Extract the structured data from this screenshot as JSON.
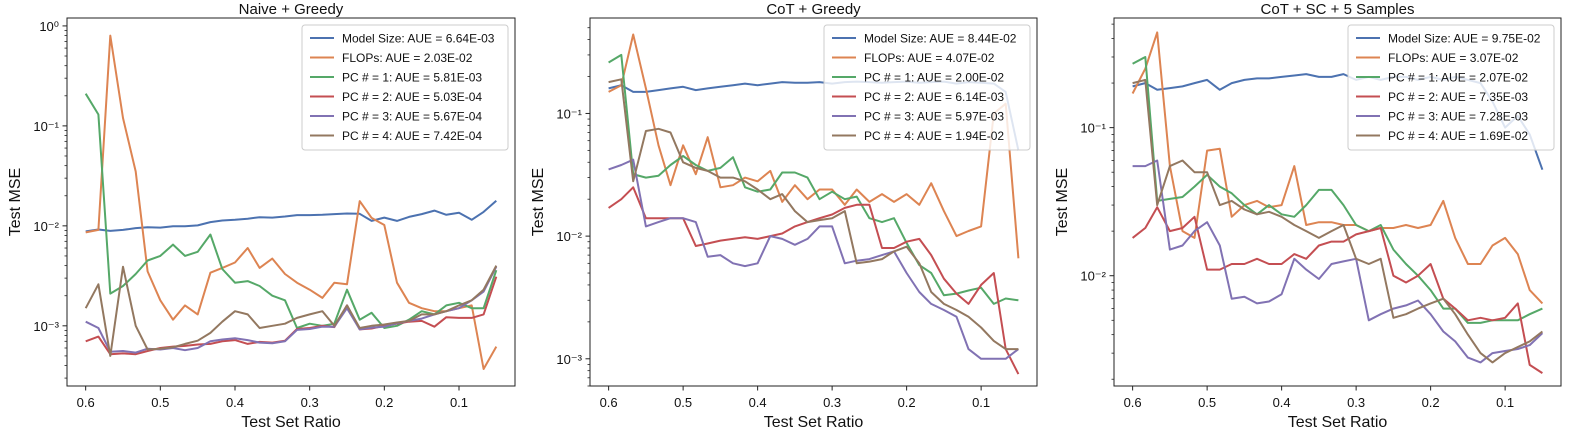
{
  "chart_data": [
    {
      "type": "line",
      "title": "Naive + Greedy",
      "xlabel": "Test Set Ratio",
      "ylabel": "Test MSE",
      "xscale": "linear",
      "yscale": "log",
      "xlim": [
        0.625,
        0.025
      ],
      "ylim": [
        0.00025,
        1.2
      ],
      "xticks": [
        0.6,
        0.5,
        0.4,
        0.3,
        0.2,
        0.1
      ],
      "xtick_labels": [
        "0.6",
        "0.5",
        "0.4",
        "0.3",
        "0.2",
        "0.1"
      ],
      "yticks": [
        0.001,
        0.01,
        0.1,
        1
      ],
      "ytick_labels": [
        "10⁻³",
        "10⁻²",
        "10⁻¹",
        "10⁰"
      ],
      "legend_position": "top-right",
      "x": [
        0.6,
        0.583,
        0.567,
        0.55,
        0.533,
        0.517,
        0.5,
        0.483,
        0.467,
        0.45,
        0.433,
        0.417,
        0.4,
        0.383,
        0.367,
        0.35,
        0.333,
        0.317,
        0.3,
        0.283,
        0.267,
        0.25,
        0.233,
        0.217,
        0.2,
        0.183,
        0.167,
        0.15,
        0.133,
        0.117,
        0.1,
        0.083,
        0.067,
        0.05
      ],
      "series": [
        {
          "name": "Model Size: AUE = 6.64E-03",
          "color": "#4c72b0",
          "values": [
            0.0088,
            0.0092,
            0.0089,
            0.0091,
            0.0095,
            0.0097,
            0.0096,
            0.0099,
            0.0099,
            0.0101,
            0.0109,
            0.0113,
            0.0115,
            0.0118,
            0.0122,
            0.0121,
            0.0124,
            0.0128,
            0.0128,
            0.0129,
            0.0131,
            0.0133,
            0.0132,
            0.0112,
            0.0121,
            0.0112,
            0.0123,
            0.0131,
            0.0142,
            0.0129,
            0.0135,
            0.0115,
            0.0138,
            0.0178
          ]
        },
        {
          "name": "FLOPs: AUE = 2.03E-02",
          "color": "#dd8452",
          "values": [
            0.0086,
            0.0091,
            0.8,
            0.12,
            0.035,
            0.0035,
            0.0018,
            0.00115,
            0.0016,
            0.0013,
            0.0034,
            0.0038,
            0.0043,
            0.006,
            0.0038,
            0.0047,
            0.0033,
            0.0027,
            0.0023,
            0.0019,
            0.0027,
            0.0026,
            0.0177,
            0.012,
            0.0102,
            0.0027,
            0.0017,
            0.0015,
            0.0014,
            0.0014,
            0.0015,
            0.0016,
            0.00037,
            0.00062
          ]
        },
        {
          "name": "PC # = 1: AUE = 5.81E-03",
          "color": "#55a868",
          "values": [
            0.21,
            0.13,
            0.0021,
            0.0025,
            0.0033,
            0.0045,
            0.005,
            0.0065,
            0.005,
            0.0055,
            0.0082,
            0.0037,
            0.0027,
            0.0028,
            0.0025,
            0.002,
            0.0018,
            0.00095,
            0.00105,
            0.001,
            0.00105,
            0.0023,
            0.00115,
            0.00135,
            0.00095,
            0.001,
            0.00115,
            0.0014,
            0.0013,
            0.0016,
            0.0017,
            0.0015,
            0.0015,
            0.0036
          ]
        },
        {
          "name": "PC # = 2: AUE = 5.03E-04",
          "color": "#c44e52",
          "values": [
            0.0007,
            0.00078,
            0.00052,
            0.00053,
            0.00052,
            0.00056,
            0.0006,
            0.00062,
            0.00063,
            0.00065,
            0.00066,
            0.0007,
            0.00072,
            0.00066,
            0.00069,
            0.00068,
            0.00071,
            0.00093,
            0.00095,
            0.001,
            0.00097,
            0.0016,
            0.00092,
            0.00094,
            0.001,
            0.00105,
            0.0011,
            0.00112,
            0.00098,
            0.00122,
            0.0012,
            0.0012,
            0.0013,
            0.0031
          ]
        },
        {
          "name": "PC # = 3: AUE = 5.67E-04",
          "color": "#8172b3",
          "values": [
            0.0011,
            0.00095,
            0.00055,
            0.00056,
            0.00054,
            0.00059,
            0.00058,
            0.0006,
            0.00057,
            0.0006,
            0.0007,
            0.00073,
            0.00075,
            0.00072,
            0.00068,
            0.00067,
            0.0007,
            0.00091,
            0.00093,
            0.00098,
            0.00098,
            0.0015,
            0.00092,
            0.00096,
            0.00098,
            0.00106,
            0.00112,
            0.00118,
            0.0013,
            0.0014,
            0.0015,
            0.0018,
            0.0022,
            0.0039
          ]
        },
        {
          "name": "PC # = 4: AUE = 7.42E-04",
          "color": "#937860",
          "values": [
            0.0015,
            0.0026,
            0.0005,
            0.0039,
            0.001,
            0.00058,
            0.00059,
            0.00061,
            0.00066,
            0.00071,
            0.00085,
            0.0011,
            0.0014,
            0.0013,
            0.00095,
            0.001,
            0.00105,
            0.0012,
            0.0013,
            0.0014,
            0.001,
            0.0016,
            0.00095,
            0.001,
            0.00103,
            0.00108,
            0.00112,
            0.0013,
            0.0013,
            0.0014,
            0.0016,
            0.0018,
            0.0023,
            0.004
          ]
        }
      ]
    },
    {
      "type": "line",
      "title": "CoT + Greedy",
      "xlabel": "Test Set Ratio",
      "ylabel": "Test MSE",
      "xscale": "linear",
      "yscale": "log",
      "xlim": [
        0.625,
        0.025
      ],
      "ylim": [
        0.0006,
        0.6
      ],
      "xticks": [
        0.6,
        0.5,
        0.4,
        0.3,
        0.2,
        0.1
      ],
      "xtick_labels": [
        "0.6",
        "0.5",
        "0.4",
        "0.3",
        "0.2",
        "0.1"
      ],
      "yticks": [
        0.001,
        0.01,
        0.1
      ],
      "ytick_labels": [
        "10⁻³",
        "10⁻²",
        "10⁻¹"
      ],
      "legend_position": "top-right",
      "x": [
        0.6,
        0.583,
        0.567,
        0.55,
        0.533,
        0.517,
        0.5,
        0.483,
        0.467,
        0.45,
        0.433,
        0.417,
        0.4,
        0.383,
        0.367,
        0.35,
        0.333,
        0.317,
        0.3,
        0.283,
        0.267,
        0.25,
        0.233,
        0.217,
        0.2,
        0.183,
        0.167,
        0.15,
        0.133,
        0.117,
        0.1,
        0.083,
        0.067,
        0.05
      ],
      "series": [
        {
          "name": "Model Size: AUE = 8.44E-02",
          "color": "#4c72b0",
          "values": [
            0.16,
            0.17,
            0.15,
            0.15,
            0.155,
            0.16,
            0.165,
            0.155,
            0.16,
            0.165,
            0.17,
            0.175,
            0.17,
            0.175,
            0.18,
            0.178,
            0.178,
            0.18,
            0.175,
            0.18,
            0.182,
            0.18,
            0.178,
            0.18,
            0.182,
            0.178,
            0.18,
            0.182,
            0.175,
            0.18,
            0.178,
            0.175,
            0.15,
            0.05
          ]
        },
        {
          "name": "FLOPs: AUE = 4.07E-02",
          "color": "#dd8452",
          "values": [
            0.15,
            0.17,
            0.44,
            0.16,
            0.055,
            0.026,
            0.055,
            0.032,
            0.064,
            0.025,
            0.026,
            0.03,
            0.028,
            0.034,
            0.019,
            0.026,
            0.02,
            0.024,
            0.024,
            0.018,
            0.024,
            0.019,
            0.022,
            0.019,
            0.022,
            0.018,
            0.027,
            0.016,
            0.01,
            0.011,
            0.012,
            0.1,
            0.12,
            0.0066
          ]
        },
        {
          "name": "PC # = 1: AUE = 2.00E-02",
          "color": "#55a868",
          "values": [
            0.26,
            0.3,
            0.032,
            0.03,
            0.031,
            0.038,
            0.045,
            0.038,
            0.034,
            0.036,
            0.044,
            0.025,
            0.023,
            0.024,
            0.033,
            0.033,
            0.03,
            0.02,
            0.023,
            0.02,
            0.021,
            0.014,
            0.013,
            0.014,
            0.0088,
            0.0058,
            0.005,
            0.0033,
            0.0034,
            0.0036,
            0.0038,
            0.0028,
            0.0031,
            0.003
          ]
        },
        {
          "name": "PC # = 2: AUE = 6.14E-03",
          "color": "#c44e52",
          "values": [
            0.017,
            0.02,
            0.025,
            0.014,
            0.014,
            0.014,
            0.014,
            0.0083,
            0.0087,
            0.0092,
            0.0095,
            0.0098,
            0.0095,
            0.01,
            0.0105,
            0.012,
            0.013,
            0.014,
            0.015,
            0.017,
            0.018,
            0.018,
            0.008,
            0.008,
            0.009,
            0.0095,
            0.007,
            0.0045,
            0.0034,
            0.0028,
            0.004,
            0.005,
            0.0012,
            0.00075
          ]
        },
        {
          "name": "PC # = 3: AUE = 5.97E-03",
          "color": "#8172b3",
          "values": [
            0.035,
            0.038,
            0.042,
            0.012,
            0.013,
            0.014,
            0.014,
            0.013,
            0.0068,
            0.007,
            0.006,
            0.0057,
            0.006,
            0.01,
            0.0095,
            0.0085,
            0.0095,
            0.012,
            0.012,
            0.006,
            0.0063,
            0.0065,
            0.007,
            0.0075,
            0.005,
            0.0035,
            0.0028,
            0.0025,
            0.0022,
            0.0012,
            0.001,
            0.001,
            0.001,
            0.0012
          ]
        },
        {
          "name": "PC # = 4: AUE = 1.94E-02",
          "color": "#937860",
          "values": [
            0.18,
            0.19,
            0.028,
            0.072,
            0.075,
            0.07,
            0.04,
            0.036,
            0.034,
            0.03,
            0.03,
            0.028,
            0.024,
            0.02,
            0.022,
            0.016,
            0.013,
            0.0135,
            0.014,
            0.016,
            0.006,
            0.0062,
            0.0065,
            0.0075,
            0.0082,
            0.006,
            0.0035,
            0.0028,
            0.0025,
            0.0022,
            0.0018,
            0.0014,
            0.0012,
            0.0012
          ]
        }
      ]
    },
    {
      "type": "line",
      "title": "CoT + SC + 5 Samples",
      "xlabel": "Test Set Ratio",
      "ylabel": "Test MSE",
      "xscale": "linear",
      "yscale": "log",
      "xlim": [
        0.625,
        0.025
      ],
      "ylim": [
        0.0018,
        0.55
      ],
      "xticks": [
        0.6,
        0.5,
        0.4,
        0.3,
        0.2,
        0.1
      ],
      "xtick_labels": [
        "0.6",
        "0.5",
        "0.4",
        "0.3",
        "0.2",
        "0.1"
      ],
      "yticks": [
        0.01,
        0.1
      ],
      "ytick_labels": [
        "10⁻²",
        "10⁻¹"
      ],
      "legend_position": "top-right",
      "x": [
        0.6,
        0.583,
        0.567,
        0.55,
        0.533,
        0.517,
        0.5,
        0.483,
        0.467,
        0.45,
        0.433,
        0.417,
        0.4,
        0.383,
        0.367,
        0.35,
        0.333,
        0.317,
        0.3,
        0.283,
        0.267,
        0.25,
        0.233,
        0.217,
        0.2,
        0.183,
        0.167,
        0.15,
        0.133,
        0.117,
        0.1,
        0.083,
        0.067,
        0.05
      ],
      "series": [
        {
          "name": "Model Size: AUE = 9.75E-02",
          "color": "#4c72b0",
          "values": [
            0.19,
            0.2,
            0.18,
            0.185,
            0.19,
            0.2,
            0.21,
            0.18,
            0.2,
            0.21,
            0.215,
            0.215,
            0.22,
            0.225,
            0.23,
            0.22,
            0.22,
            0.23,
            0.21,
            0.22,
            0.21,
            0.22,
            0.22,
            0.21,
            0.22,
            0.21,
            0.22,
            0.21,
            0.2,
            0.15,
            0.1,
            0.12,
            0.09,
            0.052
          ]
        },
        {
          "name": "FLOPs: AUE = 3.07E-02",
          "color": "#dd8452",
          "values": [
            0.17,
            0.25,
            0.44,
            0.055,
            0.02,
            0.018,
            0.07,
            0.072,
            0.025,
            0.03,
            0.032,
            0.029,
            0.03,
            0.055,
            0.022,
            0.023,
            0.023,
            0.022,
            0.022,
            0.02,
            0.021,
            0.021,
            0.022,
            0.021,
            0.022,
            0.032,
            0.018,
            0.012,
            0.012,
            0.016,
            0.018,
            0.014,
            0.008,
            0.0065
          ]
        },
        {
          "name": "PC # = 1: AUE = 2.07E-02",
          "color": "#55a868",
          "values": [
            0.27,
            0.3,
            0.032,
            0.033,
            0.034,
            0.04,
            0.048,
            0.04,
            0.036,
            0.03,
            0.026,
            0.03,
            0.026,
            0.025,
            0.03,
            0.038,
            0.038,
            0.03,
            0.022,
            0.02,
            0.022,
            0.015,
            0.012,
            0.01,
            0.008,
            0.006,
            0.006,
            0.0048,
            0.0048,
            0.005,
            0.005,
            0.005,
            0.0055,
            0.006
          ]
        },
        {
          "name": "PC # = 2: AUE = 7.35E-03",
          "color": "#c44e52",
          "values": [
            0.018,
            0.021,
            0.029,
            0.02,
            0.021,
            0.025,
            0.011,
            0.011,
            0.012,
            0.012,
            0.013,
            0.012,
            0.012,
            0.014,
            0.013,
            0.016,
            0.017,
            0.017,
            0.019,
            0.02,
            0.021,
            0.01,
            0.009,
            0.01,
            0.012,
            0.007,
            0.006,
            0.005,
            0.0052,
            0.005,
            0.0052,
            0.0065,
            0.0025,
            0.0022
          ]
        },
        {
          "name": "PC # = 3: AUE = 7.28E-03",
          "color": "#8172b3",
          "values": [
            0.055,
            0.055,
            0.06,
            0.015,
            0.016,
            0.02,
            0.023,
            0.016,
            0.007,
            0.0072,
            0.0065,
            0.0067,
            0.0075,
            0.013,
            0.011,
            0.0095,
            0.012,
            0.0125,
            0.013,
            0.005,
            0.0055,
            0.006,
            0.0063,
            0.0068,
            0.0055,
            0.0042,
            0.0036,
            0.0028,
            0.0026,
            0.003,
            0.0031,
            0.0032,
            0.0034,
            0.0041
          ]
        },
        {
          "name": "PC # = 4: AUE = 1.69E-02",
          "color": "#937860",
          "values": [
            0.2,
            0.21,
            0.03,
            0.055,
            0.06,
            0.05,
            0.05,
            0.03,
            0.032,
            0.028,
            0.026,
            0.027,
            0.025,
            0.022,
            0.02,
            0.018,
            0.02,
            0.022,
            0.013,
            0.012,
            0.013,
            0.0052,
            0.0055,
            0.006,
            0.0065,
            0.007,
            0.0055,
            0.004,
            0.003,
            0.0026,
            0.003,
            0.0033,
            0.0036,
            0.0042
          ]
        }
      ]
    }
  ]
}
